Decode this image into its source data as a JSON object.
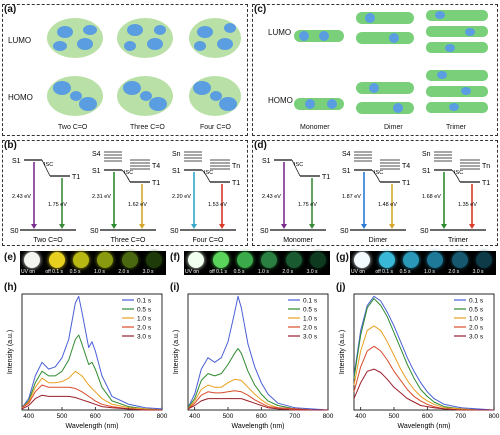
{
  "panel_a": {
    "letter": "(a)",
    "row_labels": [
      "LUMO",
      "HOMO"
    ],
    "col_labels": [
      "Two C=O",
      "Three C=O",
      "Four C=O"
    ]
  },
  "panel_c": {
    "letter": "(c)",
    "row_labels": [
      "LUMO",
      "HOMO"
    ],
    "col_labels": [
      "Monomer",
      "Dimer",
      "Trimer"
    ]
  },
  "panel_b": {
    "letter": "(b)",
    "diagrams": [
      {
        "s_upper": [
          "S1"
        ],
        "t_upper": [
          "T1"
        ],
        "isc": "ISC",
        "s_gap": "2.43 eV",
        "t_gap": "1.75 eV",
        "ground": "S0",
        "caption": "Two C=O",
        "s_color": "#7b2d8e",
        "t_color": "#3a8a3a"
      },
      {
        "s_upper": [
          "S4",
          "S1"
        ],
        "t_upper": [
          "T4",
          "T1"
        ],
        "isc": "ISC",
        "s_gap": "2.31 eV",
        "t_gap": "1.62 eV",
        "ground": "S0",
        "caption": "Three C=O",
        "s_color": "#2d8a2d",
        "t_color": "#d4a82a"
      },
      {
        "s_upper": [
          "Sn",
          "S1"
        ],
        "t_upper": [
          "Tn",
          "T1"
        ],
        "isc": "ISC",
        "s_gap": "2.20 eV",
        "t_gap": "1.53 eV",
        "ground": "S0",
        "caption": "Four C=O",
        "s_color": "#35a7c9",
        "t_color": "#d93a2a"
      }
    ]
  },
  "panel_d": {
    "letter": "(d)",
    "diagrams": [
      {
        "s_upper": [
          "S1"
        ],
        "t_upper": [
          "T1"
        ],
        "isc": "ISC",
        "s_gap": "2.43 eV",
        "t_gap": "1.75 eV",
        "ground": "S0",
        "caption": "Monomer",
        "s_color": "#7b2d8e",
        "t_color": "#3a8a3a"
      },
      {
        "s_upper": [
          "S4",
          "S1"
        ],
        "t_upper": [
          "T4",
          "T1"
        ],
        "isc": "ISC",
        "s_gap": "1.87 eV",
        "t_gap": "1.48 eV",
        "ground": "S0",
        "caption": "Dimer",
        "s_color": "#2d7ad4",
        "t_color": "#d4a82a"
      },
      {
        "s_upper": [
          "Sn",
          "S1"
        ],
        "t_upper": [
          "Tn",
          "T1"
        ],
        "isc": "ISC",
        "s_gap": "1.68 eV",
        "t_gap": "1.35 eV",
        "ground": "S0",
        "caption": "Trimer",
        "s_color": "#2d8a2d",
        "t_color": "#d93a2a"
      }
    ]
  },
  "photo_strips": [
    {
      "letter": "(e)",
      "labels": [
        "UV on",
        "off 0.1 s",
        "0.5 s",
        "1.0 s",
        "2.0 s",
        "3.0 s"
      ],
      "colors": [
        "#f4f4f0",
        "#e8d020",
        "#b8b812",
        "#8a9a10",
        "#4a6810",
        "#1e3a08"
      ]
    },
    {
      "letter": "(f)",
      "labels": [
        "UV on",
        "off 0.1 s",
        "0.5 s",
        "1.0 s",
        "2.0 s",
        "3.0 s"
      ],
      "colors": [
        "#f0fff0",
        "#5ad45a",
        "#3aaa4a",
        "#2a8040",
        "#1a5a30",
        "#0e3a20"
      ]
    },
    {
      "letter": "(g)",
      "labels": [
        "UV on",
        "off 0.1 s",
        "0.5 s",
        "1.0 s",
        "2.0 s",
        "3.0 s"
      ],
      "colors": [
        "#f4fbff",
        "#3ab8d8",
        "#2a98b8",
        "#1e7898",
        "#16586e",
        "#0e3a48"
      ]
    }
  ],
  "chart_data": [
    {
      "type": "line",
      "letter": "(h)",
      "xlabel": "Wavelength (nm)",
      "ylabel": "Intensity (a.u.)",
      "xlim": [
        380,
        800
      ],
      "xticks": [
        400,
        500,
        600,
        700,
        800
      ],
      "ylim": [
        0,
        1
      ],
      "series": [
        {
          "name": "0.1 s",
          "color": "#4a5fd6",
          "x": [
            380,
            400,
            420,
            440,
            460,
            480,
            500,
            520,
            540,
            550,
            560,
            580,
            590,
            600,
            620,
            650,
            700,
            750,
            800
          ],
          "y": [
            0.02,
            0.1,
            0.3,
            0.42,
            0.36,
            0.38,
            0.46,
            0.62,
            0.94,
            1.0,
            0.86,
            0.55,
            0.6,
            0.52,
            0.3,
            0.12,
            0.05,
            0.02,
            0.01
          ]
        },
        {
          "name": "0.5 s",
          "color": "#2f8a2f",
          "x": [
            380,
            400,
            420,
            440,
            460,
            480,
            500,
            520,
            540,
            550,
            560,
            580,
            590,
            600,
            620,
            650,
            700,
            750,
            800
          ],
          "y": [
            0.02,
            0.08,
            0.24,
            0.34,
            0.3,
            0.3,
            0.34,
            0.44,
            0.62,
            0.66,
            0.58,
            0.4,
            0.42,
            0.36,
            0.2,
            0.08,
            0.03,
            0.01,
            0.0
          ]
        },
        {
          "name": "1.0 s",
          "color": "#e8a020",
          "x": [
            380,
            400,
            420,
            440,
            460,
            480,
            500,
            520,
            540,
            560,
            580,
            600,
            620,
            650,
            700,
            750,
            800
          ],
          "y": [
            0.02,
            0.07,
            0.2,
            0.28,
            0.24,
            0.24,
            0.25,
            0.28,
            0.34,
            0.3,
            0.22,
            0.16,
            0.1,
            0.05,
            0.02,
            0.01,
            0.0
          ]
        },
        {
          "name": "2.0 s",
          "color": "#d84a2a",
          "x": [
            380,
            400,
            420,
            440,
            460,
            480,
            500,
            520,
            540,
            560,
            580,
            600,
            620,
            650,
            700,
            750,
            800
          ],
          "y": [
            0.02,
            0.06,
            0.16,
            0.22,
            0.2,
            0.2,
            0.2,
            0.2,
            0.19,
            0.16,
            0.12,
            0.08,
            0.05,
            0.03,
            0.01,
            0.0,
            0.0
          ]
        },
        {
          "name": "3.0 s",
          "color": "#9a1e2a",
          "x": [
            380,
            400,
            420,
            440,
            460,
            480,
            500,
            520,
            540,
            560,
            580,
            600,
            620,
            650,
            700,
            750,
            800
          ],
          "y": [
            0.01,
            0.04,
            0.1,
            0.13,
            0.12,
            0.12,
            0.12,
            0.12,
            0.11,
            0.09,
            0.07,
            0.05,
            0.03,
            0.02,
            0.01,
            0.0,
            0.0
          ]
        }
      ]
    },
    {
      "type": "line",
      "letter": "(i)",
      "xlabel": "Wavelength (nm)",
      "ylabel": "Intensity (a.u.)",
      "xlim": [
        380,
        800
      ],
      "xticks": [
        400,
        500,
        600,
        700,
        800
      ],
      "ylim": [
        0,
        1
      ],
      "series": [
        {
          "name": "0.1 s",
          "color": "#4a5fd6",
          "x": [
            380,
            400,
            420,
            440,
            460,
            480,
            500,
            520,
            530,
            540,
            560,
            580,
            600,
            620,
            650,
            700,
            750,
            800
          ],
          "y": [
            0.02,
            0.14,
            0.36,
            0.46,
            0.42,
            0.46,
            0.6,
            0.86,
            1.0,
            0.9,
            0.58,
            0.38,
            0.24,
            0.14,
            0.06,
            0.02,
            0.01,
            0.0
          ]
        },
        {
          "name": "0.5 s",
          "color": "#2f8a2f",
          "x": [
            380,
            400,
            420,
            440,
            460,
            480,
            500,
            520,
            530,
            540,
            560,
            580,
            600,
            620,
            650,
            700,
            750,
            800
          ],
          "y": [
            0.02,
            0.1,
            0.26,
            0.32,
            0.3,
            0.32,
            0.4,
            0.5,
            0.54,
            0.5,
            0.34,
            0.22,
            0.14,
            0.08,
            0.04,
            0.01,
            0.0,
            0.0
          ]
        },
        {
          "name": "1.0 s",
          "color": "#e8a020",
          "x": [
            380,
            400,
            420,
            440,
            460,
            480,
            500,
            520,
            540,
            560,
            580,
            600,
            620,
            650,
            700,
            750,
            800
          ],
          "y": [
            0.01,
            0.08,
            0.18,
            0.22,
            0.2,
            0.2,
            0.24,
            0.27,
            0.26,
            0.2,
            0.14,
            0.09,
            0.05,
            0.02,
            0.01,
            0.0,
            0.0
          ]
        },
        {
          "name": "2.0 s",
          "color": "#d84a2a",
          "x": [
            380,
            400,
            420,
            440,
            460,
            480,
            500,
            520,
            540,
            560,
            580,
            600,
            620,
            650,
            700,
            750,
            800
          ],
          "y": [
            0.01,
            0.06,
            0.13,
            0.16,
            0.15,
            0.15,
            0.16,
            0.17,
            0.16,
            0.13,
            0.09,
            0.06,
            0.03,
            0.02,
            0.01,
            0.0,
            0.0
          ]
        },
        {
          "name": "3.0 s",
          "color": "#9a1e2a",
          "x": [
            380,
            400,
            420,
            440,
            460,
            480,
            500,
            520,
            540,
            560,
            580,
            600,
            620,
            650,
            700,
            750,
            800
          ],
          "y": [
            0.01,
            0.04,
            0.08,
            0.1,
            0.1,
            0.1,
            0.1,
            0.1,
            0.1,
            0.08,
            0.06,
            0.04,
            0.02,
            0.01,
            0.0,
            0.0,
            0.0
          ]
        }
      ]
    },
    {
      "type": "line",
      "letter": "(j)",
      "xlabel": "Wavelength (nm)",
      "ylabel": "Intensity (a.u.)",
      "xlim": [
        380,
        800
      ],
      "xticks": [
        400,
        500,
        600,
        700,
        800
      ],
      "ylim": [
        0,
        1
      ],
      "series": [
        {
          "name": "0.1 s",
          "color": "#4a5fd6",
          "x": [
            380,
            400,
            420,
            440,
            460,
            480,
            500,
            520,
            540,
            560,
            580,
            600,
            620,
            650,
            700,
            750,
            800
          ],
          "y": [
            0.3,
            0.7,
            0.92,
            1.0,
            0.96,
            0.86,
            0.74,
            0.6,
            0.46,
            0.34,
            0.24,
            0.16,
            0.1,
            0.05,
            0.02,
            0.01,
            0.0
          ]
        },
        {
          "name": "0.5 s",
          "color": "#2f8a2f",
          "x": [
            380,
            400,
            420,
            440,
            460,
            480,
            500,
            520,
            540,
            560,
            580,
            600,
            620,
            650,
            700,
            750,
            800
          ],
          "y": [
            0.28,
            0.66,
            0.9,
            0.98,
            0.92,
            0.82,
            0.68,
            0.54,
            0.4,
            0.28,
            0.18,
            0.12,
            0.07,
            0.03,
            0.01,
            0.0,
            0.0
          ]
        },
        {
          "name": "1.0 s",
          "color": "#e8a020",
          "x": [
            380,
            400,
            420,
            440,
            460,
            480,
            500,
            520,
            540,
            560,
            580,
            600,
            620,
            650,
            700,
            750,
            800
          ],
          "y": [
            0.22,
            0.52,
            0.7,
            0.74,
            0.7,
            0.6,
            0.48,
            0.36,
            0.26,
            0.18,
            0.12,
            0.08,
            0.05,
            0.02,
            0.01,
            0.0,
            0.0
          ]
        },
        {
          "name": "2.0 s",
          "color": "#d84a2a",
          "x": [
            380,
            400,
            420,
            440,
            460,
            480,
            500,
            520,
            540,
            560,
            580,
            600,
            620,
            650,
            700,
            750,
            800
          ],
          "y": [
            0.16,
            0.38,
            0.52,
            0.56,
            0.52,
            0.44,
            0.34,
            0.26,
            0.18,
            0.12,
            0.08,
            0.05,
            0.03,
            0.01,
            0.0,
            0.0,
            0.0
          ]
        },
        {
          "name": "3.0 s",
          "color": "#9a1e2a",
          "x": [
            380,
            400,
            420,
            440,
            460,
            480,
            500,
            520,
            540,
            560,
            580,
            600,
            620,
            650,
            700,
            750,
            800
          ],
          "y": [
            0.1,
            0.24,
            0.34,
            0.36,
            0.33,
            0.27,
            0.2,
            0.15,
            0.1,
            0.07,
            0.04,
            0.03,
            0.02,
            0.01,
            0.0,
            0.0,
            0.0
          ]
        }
      ]
    }
  ]
}
